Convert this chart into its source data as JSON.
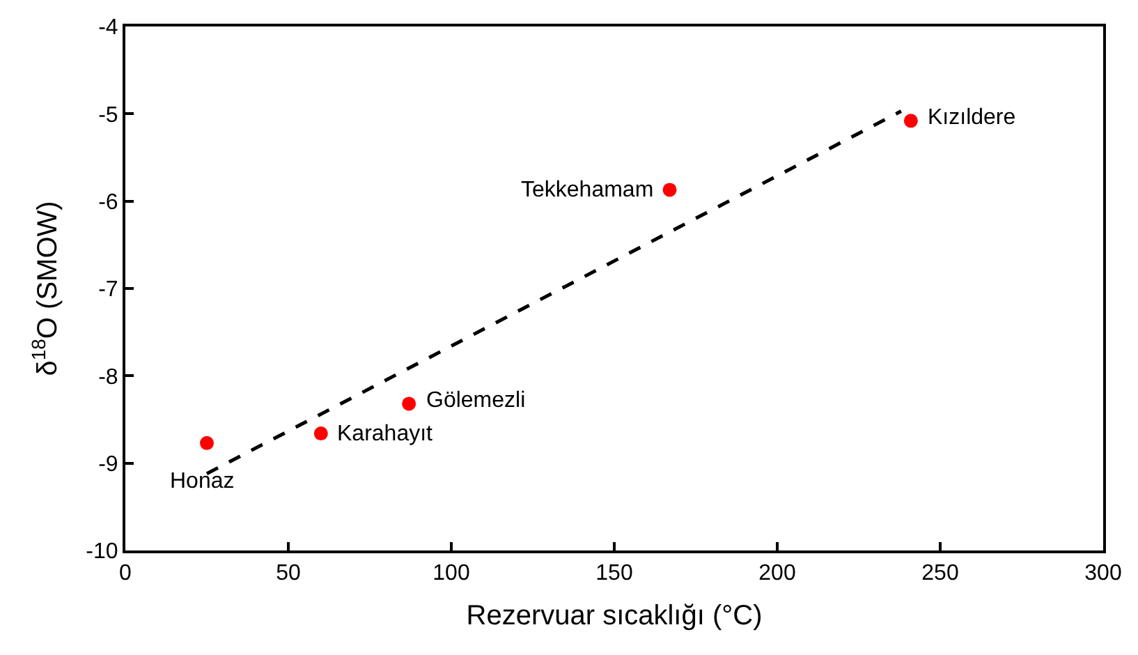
{
  "chart_data": {
    "type": "scatter",
    "xlabel": "Rezervuar sıcaklığı (°C)",
    "ylabel": "δ$^{18}$O (SMOW)",
    "xlim": [
      0,
      300
    ],
    "xticks": [
      0,
      50,
      100,
      150,
      200,
      250,
      300
    ],
    "ylim": [
      -10,
      -4
    ],
    "yticks": [
      -10,
      -9,
      -8,
      -7,
      -6,
      -5,
      -4
    ],
    "marker": "circle",
    "series": [
      {
        "color": "#ff0000",
        "x": [
          25,
          60,
          87,
          167,
          241
        ],
        "values": [
          -8.77,
          -8.66,
          -8.32,
          -5.87,
          -5.08
        ]
      },
      {
        "type": "line",
        "color": "#000000",
        "line_style": "dashed",
        "marker": "none",
        "x": [
          25,
          238
        ],
        "values": [
          -9.12,
          -4.97
        ]
      }
    ],
    "annotations": [
      {
        "text": "Honaz",
        "x": 25,
        "y": -8.77
      },
      {
        "text": "Karahayıt",
        "x": 60,
        "y": -8.66
      },
      {
        "text": "Gölemezli",
        "x": 87,
        "y": -8.32
      },
      {
        "text": "Tekkehamam",
        "x": 167,
        "y": -5.87
      },
      {
        "text": "Kızıldere",
        "x": 241,
        "y": -5.08
      }
    ]
  }
}
